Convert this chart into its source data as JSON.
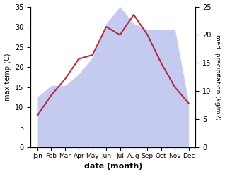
{
  "months": [
    "Jan",
    "Feb",
    "Mar",
    "Apr",
    "May",
    "Jun",
    "Jul",
    "Aug",
    "Sep",
    "Oct",
    "Nov",
    "Dec"
  ],
  "temperature": [
    8,
    13,
    17,
    22,
    23,
    30,
    28,
    33,
    28,
    21,
    15,
    11
  ],
  "precipitation": [
    9,
    11,
    11,
    13,
    16,
    22,
    25,
    22,
    21,
    21,
    21,
    8
  ],
  "temp_color": "#b03040",
  "precip_fill_color": "#c5caf0",
  "temp_ylim": [
    0,
    35
  ],
  "precip_ylim": [
    0,
    25
  ],
  "temp_yticks": [
    0,
    5,
    10,
    15,
    20,
    25,
    30,
    35
  ],
  "precip_yticks": [
    0,
    5,
    10,
    15,
    20,
    25
  ],
  "xlabel": "date (month)",
  "ylabel_left": "max temp (C)",
  "ylabel_right": "med. precipitation (kg/m2)",
  "figsize": [
    3.18,
    2.47
  ],
  "dpi": 100
}
